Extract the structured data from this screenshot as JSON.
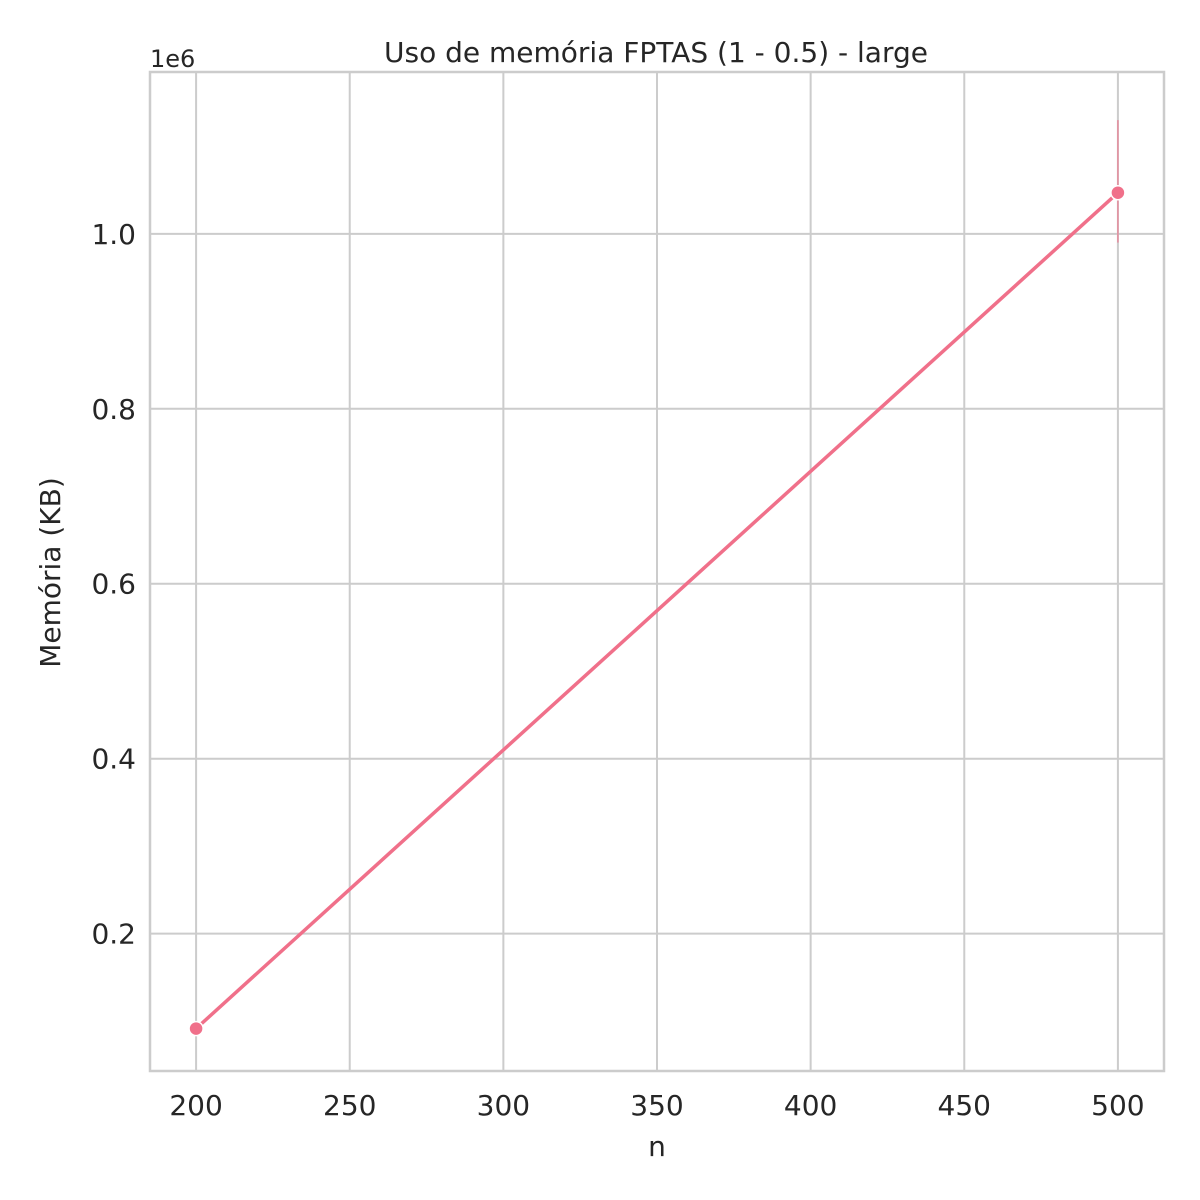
{
  "chart_data": {
    "type": "line",
    "title": "Uso de memória FPTAS (1 - 0.5) - large",
    "xlabel": "n",
    "ylabel": "Memória (KB)",
    "y_offset_label": "1e6",
    "x": [
      200,
      500
    ],
    "series": [
      {
        "values": [
          91500,
          1047000
        ],
        "error_upper": [
          91500,
          1130000
        ],
        "error_lower": [
          91500,
          990000
        ],
        "color": "#f0708a",
        "marker": "circle"
      }
    ],
    "xlim": [
      185,
      515
    ],
    "ylim": [
      43000,
      1185000
    ],
    "xticks": [
      200,
      250,
      300,
      350,
      400,
      450,
      500
    ],
    "xtick_labels": [
      "200",
      "250",
      "300",
      "350",
      "400",
      "450",
      "500"
    ],
    "yticks": [
      200000,
      400000,
      600000,
      800000,
      1000000
    ],
    "ytick_labels": [
      "0.2",
      "0.4",
      "0.6",
      "0.8",
      "1.0"
    ],
    "grid": true,
    "legend": "none",
    "grid_color": "#cccccc",
    "frame_color": "#cccccc"
  }
}
